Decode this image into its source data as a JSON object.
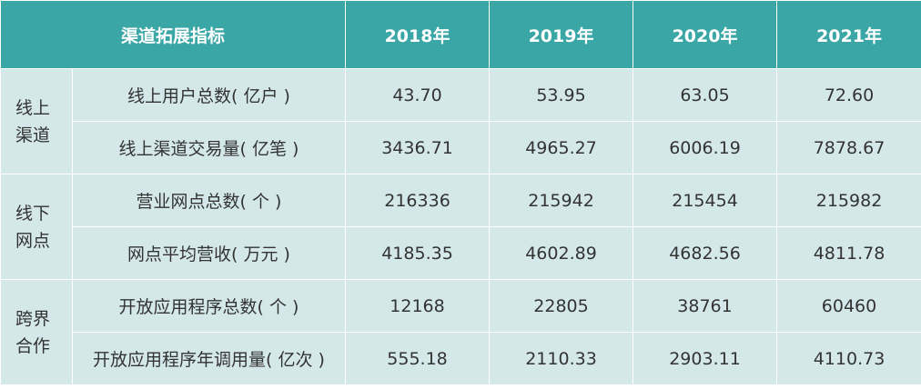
{
  "header": {
    "indicator": "渠道拓展指标",
    "years": [
      "2018年",
      "2019年",
      "2020年",
      "2021年"
    ]
  },
  "groups": [
    {
      "name_line1": "线上",
      "name_line2": "渠道",
      "rows": [
        {
          "label": "线上用户总数( 亿户 )",
          "values": [
            "43.70",
            "53.95",
            "63.05",
            "72.60"
          ]
        },
        {
          "label": "线上渠道交易量( 亿笔 )",
          "values": [
            "3436.71",
            "4965.27",
            "6006.19",
            "7878.67"
          ]
        }
      ]
    },
    {
      "name_line1": "线下",
      "name_line2": "网点",
      "rows": [
        {
          "label": "营业网点总数( 个 )",
          "values": [
            "216336",
            "215942",
            "215454",
            "215982"
          ]
        },
        {
          "label": "网点平均营收( 万元 )",
          "values": [
            "4185.35",
            "4602.89",
            "4682.56",
            "4811.78"
          ]
        }
      ]
    },
    {
      "name_line1": "跨界",
      "name_line2": "合作",
      "rows": [
        {
          "label": "开放应用程序总数( 个 )",
          "values": [
            "12168",
            "22805",
            "38761",
            "60460"
          ]
        },
        {
          "label": "开放应用程序年调用量( 亿次 )",
          "values": [
            "555.18",
            "2110.33",
            "2903.11",
            "4110.73"
          ]
        }
      ]
    }
  ],
  "colors": {
    "header_bg": "#3aa6a6",
    "body_bg": "#d4e8ea",
    "border": "#ffffff"
  }
}
